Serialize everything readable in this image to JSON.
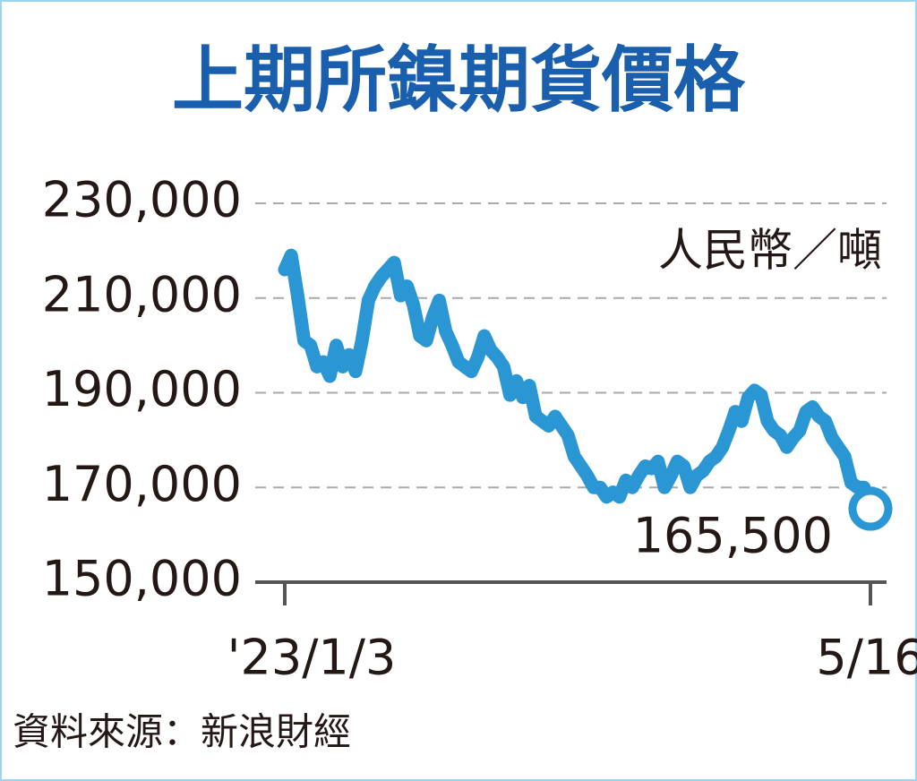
{
  "chart_data": {
    "type": "line",
    "title": "上期所鎳期貨價格",
    "unit": "人民幣／噸",
    "source": "資料來源：新浪財經",
    "categories": [
      "'23/1/3",
      null,
      null,
      null,
      null,
      null,
      null,
      null,
      null,
      null,
      null,
      null,
      null,
      null,
      null,
      null,
      null,
      null,
      null,
      null,
      null,
      null,
      null,
      null,
      null,
      null,
      null,
      null,
      null,
      null,
      null,
      null,
      null,
      null,
      null,
      null,
      null,
      null,
      null,
      null,
      null,
      null,
      null,
      null,
      null,
      null,
      null,
      null,
      null,
      null,
      null,
      null,
      null,
      null,
      null,
      null,
      null,
      null,
      null,
      null,
      null,
      null,
      null,
      null,
      null,
      null,
      null,
      null,
      null,
      null,
      null,
      null,
      null,
      null,
      null,
      null,
      null,
      null,
      null,
      null,
      null,
      null,
      null,
      null,
      null,
      null,
      null,
      null,
      null,
      null,
      null,
      "5/16"
    ],
    "series": [
      {
        "color": "#2a96d4",
        "values": [
          216000,
          219000,
          210500,
          201000,
          200000,
          195500,
          196500,
          193500,
          200000,
          195500,
          198000,
          194500,
          201000,
          209500,
          212500,
          214500,
          216000,
          217500,
          210500,
          212500,
          208500,
          202000,
          201000,
          206000,
          209500,
          203000,
          200000,
          196500,
          195500,
          194500,
          197500,
          202000,
          199000,
          197500,
          195500,
          189500,
          192500,
          189000,
          191500,
          185000,
          184000,
          183000,
          185000,
          183000,
          181000,
          176500,
          174500,
          172500,
          170000,
          170000,
          168000,
          169000,
          168000,
          171500,
          170000,
          172500,
          174500,
          174000,
          175500,
          170000,
          172500,
          175500,
          174500,
          170000,
          172500,
          173500,
          175500,
          176500,
          178500,
          182000,
          186000,
          184000,
          189000,
          190500,
          189500,
          184000,
          182000,
          181000,
          178500,
          180500,
          182000,
          186000,
          187000,
          185000,
          184000,
          180500,
          178500,
          176500,
          171000,
          170000,
          170000,
          165500
        ],
        "value_labels": [
          null,
          null,
          null,
          null,
          null,
          null,
          null,
          null,
          null,
          null,
          null,
          null,
          null,
          null,
          null,
          null,
          null,
          null,
          null,
          null,
          null,
          null,
          null,
          null,
          null,
          null,
          null,
          null,
          null,
          null,
          null,
          null,
          null,
          null,
          null,
          null,
          null,
          null,
          null,
          null,
          null,
          null,
          null,
          null,
          null,
          null,
          null,
          null,
          null,
          null,
          null,
          null,
          null,
          null,
          null,
          null,
          null,
          null,
          null,
          null,
          null,
          null,
          null,
          null,
          null,
          null,
          null,
          null,
          null,
          null,
          null,
          null,
          null,
          null,
          null,
          null,
          null,
          null,
          null,
          null,
          null,
          null,
          null,
          null,
          null,
          null,
          null,
          null,
          null,
          null,
          null,
          "165,500"
        ]
      }
    ],
    "ylim": [
      150000,
      230000
    ],
    "yticks": [
      {
        "value": 150000,
        "label": "150,000"
      },
      {
        "value": 170000,
        "label": "170,000"
      },
      {
        "value": 190000,
        "label": "190,000"
      },
      {
        "value": 210000,
        "label": "210,000"
      },
      {
        "value": 230000,
        "label": "230,000"
      }
    ],
    "grid": true
  }
}
